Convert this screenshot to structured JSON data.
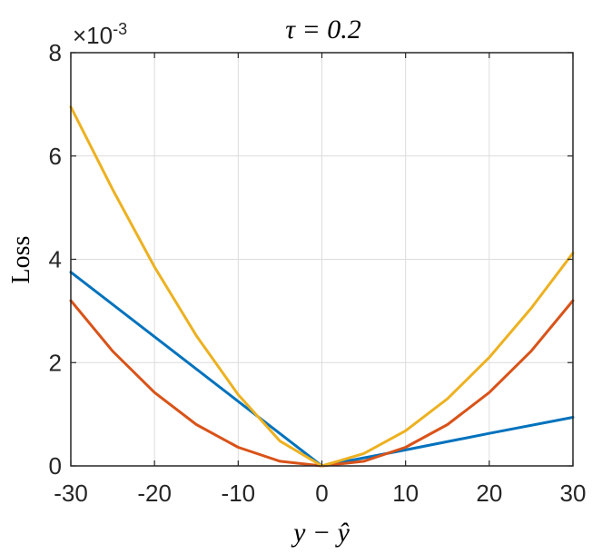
{
  "chart_data": {
    "type": "line",
    "title": "τ = 0.2",
    "xlabel": "y − ŷ",
    "ylabel": "Loss",
    "y_exponent_label": "×10",
    "y_exponent_power": "-3",
    "xlim": [
      -30,
      30
    ],
    "ylim": [
      0,
      8
    ],
    "x_ticks": [
      "-30",
      "-20",
      "-10",
      "0",
      "10",
      "20",
      "30"
    ],
    "y_ticks": [
      "0",
      "2",
      "4",
      "6",
      "8"
    ],
    "grid": true,
    "y_scale_note": "values in units of 1e-3",
    "series": [
      {
        "color": "#0072BD",
        "x": [
          -30,
          -20,
          -10,
          0,
          10,
          20,
          30
        ],
        "y": [
          3.75,
          2.5,
          1.25,
          0,
          0.31,
          0.63,
          0.94
        ]
      },
      {
        "color": "#D95319",
        "x": [
          -30,
          -25,
          -20,
          -15,
          -10,
          -5,
          0,
          5,
          10,
          15,
          20,
          25,
          30
        ],
        "y": [
          3.2,
          2.22,
          1.42,
          0.8,
          0.36,
          0.09,
          0,
          0.09,
          0.36,
          0.8,
          1.42,
          2.22,
          3.2
        ]
      },
      {
        "color": "#EDB120",
        "x": [
          -30,
          -25,
          -20,
          -15,
          -10,
          -5,
          0,
          5,
          10,
          15,
          20,
          25,
          30
        ],
        "y": [
          6.95,
          5.35,
          3.85,
          2.52,
          1.38,
          0.48,
          0,
          0.24,
          0.68,
          1.3,
          2.1,
          3.05,
          4.12
        ]
      }
    ]
  }
}
